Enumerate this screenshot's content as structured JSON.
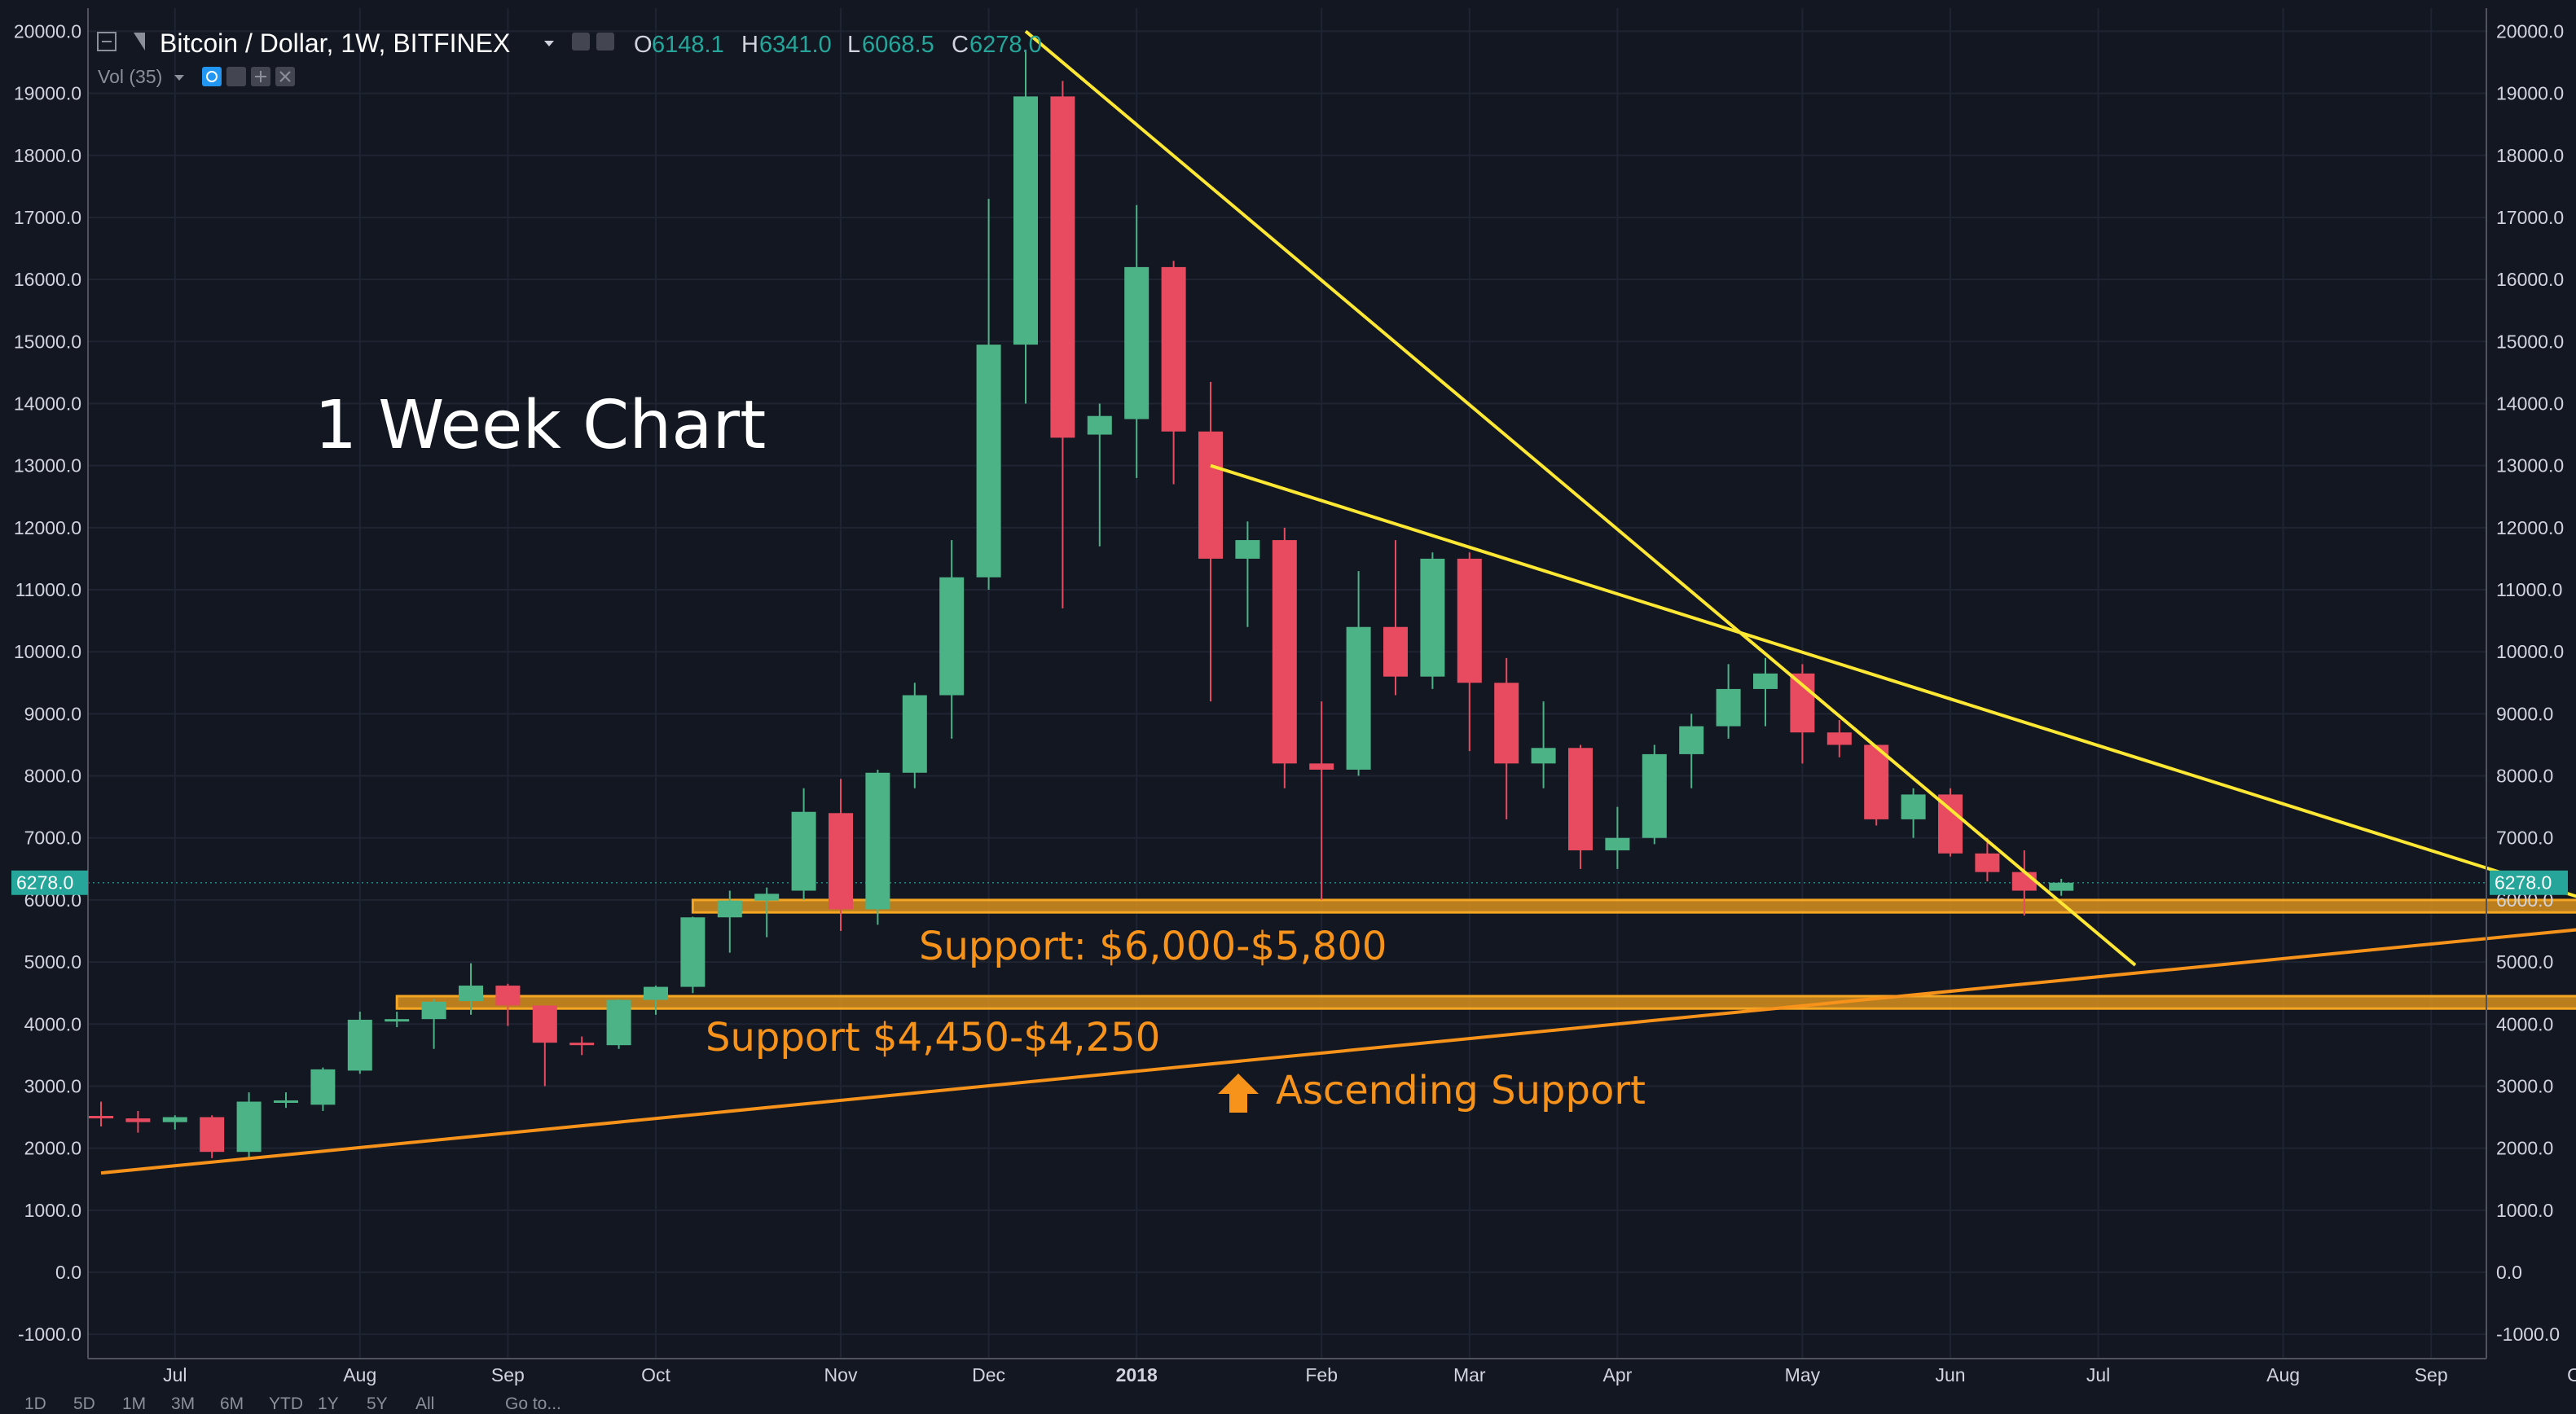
{
  "header": {
    "symbol_title": "Bitcoin / Dollar, 1W, BITFINEX",
    "ohlc": [
      {
        "key": "O",
        "value": "6148.1"
      },
      {
        "key": "H",
        "value": "6341.0"
      },
      {
        "key": "L",
        "value": "6068.5"
      },
      {
        "key": "C",
        "value": "6278.0"
      }
    ],
    "volume_label": "Vol (35)"
  },
  "chart_title": "1 Week Chart",
  "last_price_label": "6278.0",
  "annotations": {
    "support_upper": "Support: $6,000-$5,800",
    "support_lower": "Support $4,450-$4,250",
    "ascending": "Ascending  Support"
  },
  "bottom_toolbar": [
    "1D",
    "5D",
    "1M",
    "3M",
    "6M",
    "YTD",
    "1Y",
    "5Y",
    "All",
    "Go to..."
  ],
  "colors": {
    "background": "#131722",
    "up": "#4cb386",
    "down": "#e84a5f",
    "trendline": "#ffe833",
    "support_line": "#f7931a",
    "zone_fill": "#d9901e",
    "zone_stroke": "#f5a623"
  },
  "chart_data": {
    "type": "candlestick",
    "title": "",
    "yaxis": {
      "ticks": [
        -1000,
        0,
        1000,
        2000,
        3000,
        4000,
        5000,
        6000,
        7000,
        8000,
        9000,
        10000,
        11000,
        12000,
        13000,
        14000,
        15000,
        16000,
        17000,
        18000,
        19000,
        20000
      ],
      "tick_labels": [
        "-1000.0",
        "0.0",
        "1000.0",
        "2000.0",
        "3000.0",
        "4000.0",
        "5000.0",
        "6000.0",
        "7000.0",
        "8000.0",
        "9000.0",
        "10000.0",
        "11000.0",
        "12000.0",
        "13000.0",
        "14000.0",
        "15000.0",
        "16000.0",
        "17000.0",
        "18000.0",
        "19000.0",
        "20000.0"
      ],
      "range": [
        -1000,
        20000
      ],
      "sides": "both"
    },
    "xaxis": {
      "labels": [
        "Jul",
        "Aug",
        "Sep",
        "Oct",
        "Nov",
        "Dec",
        "2018",
        "Feb",
        "Mar",
        "Apr",
        "May",
        "Jun",
        "Jul",
        "Aug",
        "Sep",
        "Oc"
      ],
      "label_week_index": [
        2,
        7,
        11,
        15,
        20,
        24,
        28,
        33,
        37,
        41,
        46,
        50,
        54,
        59,
        63,
        67
      ]
    },
    "grid": true,
    "candles": [
      [
        2520,
        2750,
        2350,
        2480
      ],
      [
        2480,
        2600,
        2250,
        2420
      ],
      [
        2420,
        2530,
        2300,
        2500
      ],
      [
        2500,
        2530,
        1840,
        1940
      ],
      [
        1940,
        2900,
        1850,
        2750
      ],
      [
        2750,
        2900,
        2650,
        2770
      ],
      [
        2700,
        3300,
        2600,
        3270
      ],
      [
        3250,
        4200,
        3200,
        4070
      ],
      [
        4070,
        4200,
        3950,
        4080
      ],
      [
        4080,
        4400,
        3600,
        4360
      ],
      [
        4370,
        4980,
        4150,
        4620
      ],
      [
        4620,
        4650,
        3970,
        4300
      ],
      [
        4300,
        4300,
        3000,
        3700
      ],
      [
        3700,
        3800,
        3500,
        3660
      ],
      [
        3660,
        4400,
        3600,
        4390
      ],
      [
        4390,
        4620,
        4150,
        4600
      ],
      [
        4600,
        5730,
        4500,
        5720
      ],
      [
        5720,
        6150,
        5150,
        5990
      ],
      [
        5990,
        6200,
        5400,
        6100
      ],
      [
        6150,
        7800,
        6000,
        7420
      ],
      [
        7400,
        7950,
        5500,
        5850
      ],
      [
        5850,
        8100,
        5600,
        8050
      ],
      [
        8050,
        9500,
        7800,
        9300
      ],
      [
        9300,
        11800,
        8600,
        11200
      ],
      [
        11200,
        17300,
        11000,
        14950
      ],
      [
        14950,
        19700,
        14000,
        18950
      ],
      [
        18950,
        19200,
        10700,
        13450
      ],
      [
        13500,
        14000,
        11700,
        13800
      ],
      [
        13750,
        17200,
        12800,
        16200
      ],
      [
        16200,
        16300,
        12700,
        13550
      ],
      [
        13550,
        14350,
        9200,
        11500
      ],
      [
        11500,
        12100,
        10400,
        11800
      ],
      [
        11800,
        12000,
        7800,
        8200
      ],
      [
        8200,
        9200,
        6000,
        8100
      ],
      [
        8100,
        11300,
        8000,
        10400
      ],
      [
        10400,
        11800,
        9300,
        9600
      ],
      [
        9600,
        11600,
        9400,
        11500
      ],
      [
        11500,
        11600,
        8400,
        9500
      ],
      [
        9500,
        9900,
        7300,
        8200
      ],
      [
        8200,
        9200,
        7800,
        8450
      ],
      [
        8450,
        8500,
        6500,
        6800
      ],
      [
        6800,
        7500,
        6500,
        7000
      ],
      [
        7000,
        8500,
        6900,
        8350
      ],
      [
        8350,
        9000,
        7800,
        8800
      ],
      [
        8800,
        9800,
        8600,
        9400
      ],
      [
        9400,
        9900,
        8800,
        9650
      ],
      [
        9650,
        9800,
        8200,
        8700
      ],
      [
        8700,
        8900,
        8300,
        8500
      ],
      [
        8500,
        8500,
        7200,
        7300
      ],
      [
        7300,
        7800,
        7000,
        7700
      ],
      [
        7700,
        7800,
        6700,
        6750
      ],
      [
        6750,
        7000,
        6300,
        6450
      ],
      [
        6450,
        6800,
        5750,
        6150
      ],
      [
        6148.1,
        6341.0,
        6068.5,
        6278.0
      ]
    ],
    "trendlines": [
      {
        "name": "",
        "color": "yellow",
        "points": [
          [
            25,
            20000
          ],
          [
            55,
            4950
          ]
        ]
      },
      {
        "name": "",
        "color": "yellow",
        "points": [
          [
            30,
            13000
          ],
          [
            68.3,
            5800
          ]
        ]
      },
      {
        "name": "",
        "color": "orange",
        "points": [
          [
            0,
            1600
          ],
          [
            68.3,
            5600
          ]
        ]
      }
    ],
    "zones": [
      {
        "label": "Support: $6,000-$5,800",
        "y_range": [
          5800,
          6000
        ],
        "x_range": [
          16,
          67.3
        ]
      },
      {
        "label": "Support $4,450-$4,250",
        "y_range": [
          4250,
          4450
        ],
        "x_range": [
          8,
          68.3
        ]
      }
    ]
  }
}
